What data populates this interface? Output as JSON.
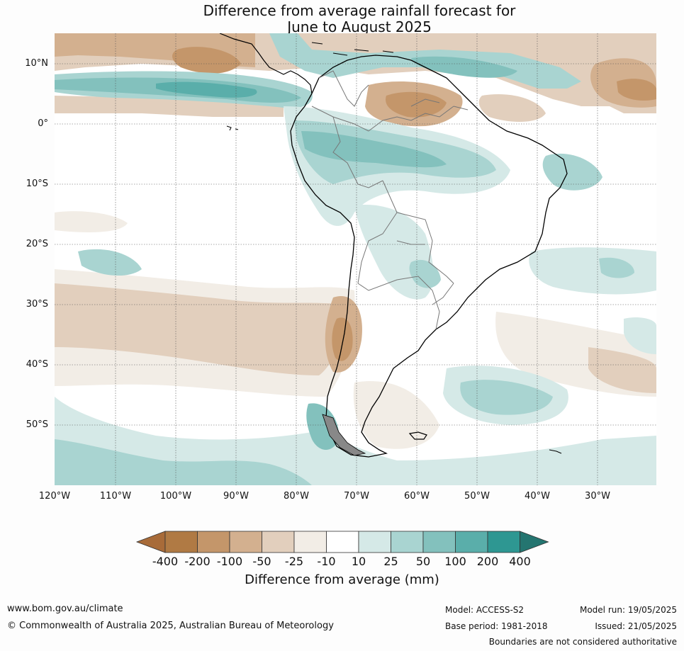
{
  "title_line1": "Difference from average rainfall forecast for",
  "title_line2": "June to August 2025",
  "lat_labels": [
    "10°N",
    "0°",
    "10°S",
    "20°S",
    "30°S",
    "40°S",
    "50°S"
  ],
  "lon_labels": [
    "120°W",
    "110°W",
    "100°W",
    "90°W",
    "80°W",
    "70°W",
    "60°W",
    "50°W",
    "40°W",
    "30°W"
  ],
  "map_extent": {
    "lon_min": -120,
    "lon_max": -20,
    "lat_min": -60,
    "lat_max": 15
  },
  "colorbar": {
    "title": "Difference from average (mm)",
    "ticks": [
      "-400",
      "-200",
      "-100",
      "-50",
      "-25",
      "-10",
      "10",
      "25",
      "50",
      "100",
      "200",
      "400"
    ],
    "colors": [
      "#a86b39",
      "#b07a44",
      "#c4966a",
      "#d3b08f",
      "#e2cfbd",
      "#f2ede6",
      "#ffffff",
      "#d5e9e7",
      "#a9d4d1",
      "#83c1bd",
      "#5aaeaa",
      "#2e9792",
      "#247570"
    ]
  },
  "footer": {
    "website": "www.bom.gov.au/climate",
    "copyright": "© Commonwealth of Australia 2025, Australian Bureau of Meteorology",
    "model": "Model: ACCESS-S2",
    "base_period": "Base period: 1981-2018",
    "model_run": "Model run: 19/05/2025",
    "issued": "Issued: 21/05/2025",
    "disclaimer": "Boundaries are not considered authoritative"
  }
}
